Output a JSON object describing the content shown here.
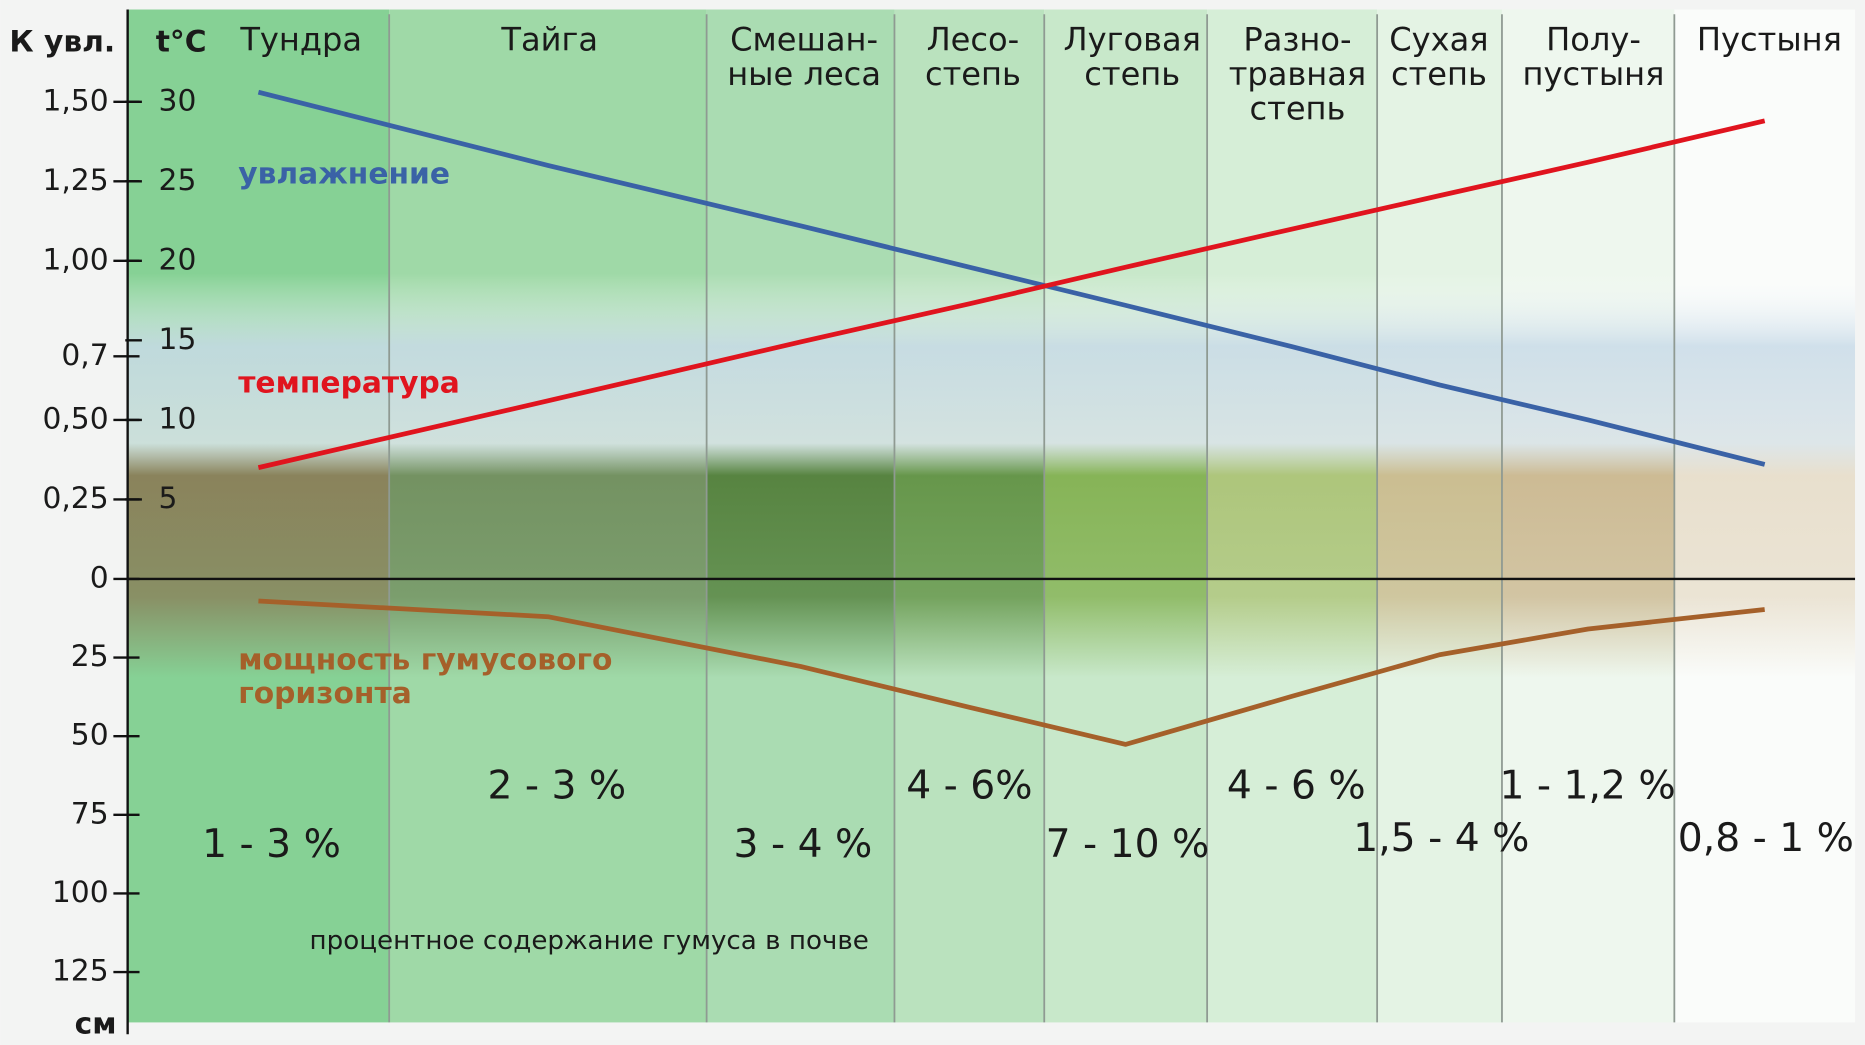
{
  "chart_data": {
    "type": "line",
    "y_label": "К увл.",
    "y2_label": "t°C",
    "y3_label": "см",
    "zones": [
      {
        "name": [
          "Тундра"
        ],
        "humus": "1 - 3 %"
      },
      {
        "name": [
          "Тайга"
        ],
        "humus": "2 - 3 %"
      },
      {
        "name": [
          "Смешан-",
          "ные леса"
        ],
        "humus": "3 - 4 %"
      },
      {
        "name": [
          "Лесо-",
          "степь"
        ],
        "humus": "4 - 6%"
      },
      {
        "name": [
          "Луговая",
          "степь"
        ],
        "humus": "7 - 10 %"
      },
      {
        "name": [
          "Разно-",
          "травная",
          "степь"
        ],
        "humus": "4 - 6 %"
      },
      {
        "name": [
          "Сухая",
          "степь"
        ],
        "humus": "1,5 - 4 %"
      },
      {
        "name": [
          "Полу-",
          "пустыня"
        ],
        "humus": "1 - 1,2 %"
      },
      {
        "name": [
          "Пустыня"
        ],
        "humus": "0,8 - 1 %"
      }
    ],
    "humus_caption": "процентное содержание гумуса в почве",
    "ylim": [
      0,
      1.79
    ],
    "yticks": [
      0,
      {
        "value": 0.25,
        "label": "0,25"
      },
      {
        "value": 0.5,
        "label": "0,50"
      },
      {
        "value": 0.7,
        "label": "0,7"
      },
      {
        "value": 1.0,
        "label": "1,00"
      },
      {
        "value": 1.25,
        "label": "1,25"
      },
      {
        "value": 1.5,
        "label": "1,50"
      }
    ],
    "y2lim": [
      0,
      35.8
    ],
    "y2ticks": [
      5,
      10,
      15,
      20,
      25,
      30
    ],
    "y3lim": [
      0,
      141
    ],
    "y3ticks": [
      25,
      50,
      75,
      100,
      125
    ],
    "series": [
      {
        "name": [
          "увлажнение"
        ],
        "color": "#3a62a6",
        "axis": "y",
        "values": [
          1.53,
          1.3,
          1.11,
          0.98,
          0.86,
          0.73,
          0.61,
          0.5,
          0.36
        ]
      },
      {
        "name": [
          "температура"
        ],
        "color": "#e0141e",
        "axis": "y2",
        "values": [
          7.0,
          11.2,
          14.9,
          17.3,
          19.6,
          22.0,
          24.1,
          26.2,
          28.8
        ]
      },
      {
        "name": [
          "мощность гумусового",
          "горизонта"
        ],
        "color": "#a5602a",
        "axis": "y3",
        "values": [
          7,
          12,
          27.8,
          40.8,
          52.6,
          37.3,
          24.1,
          15.9,
          9.7
        ]
      }
    ]
  }
}
